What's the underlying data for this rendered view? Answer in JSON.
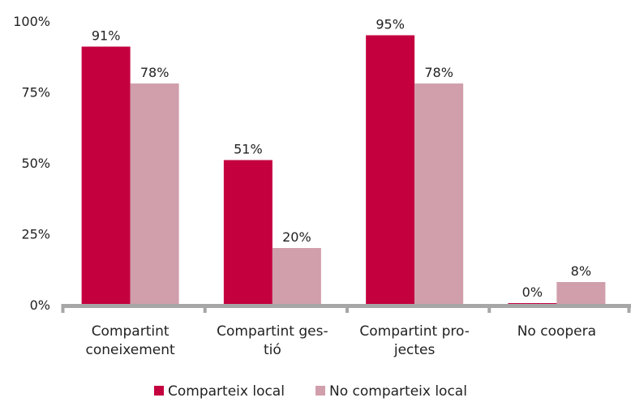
{
  "chart_data": {
    "type": "bar",
    "title": "",
    "xlabel": "",
    "ylabel": "",
    "ylim": [
      0,
      100
    ],
    "y_ticks": [
      "0%",
      "25%",
      "50%",
      "75%",
      "100%"
    ],
    "y_tick_values": [
      0,
      25,
      50,
      75,
      100
    ],
    "grid": false,
    "legend_position": "bottom",
    "categories": [
      [
        "Compartint",
        "coneixement"
      ],
      [
        "Compartint ges-",
        "tió"
      ],
      [
        "Compartint pro-",
        "jectes"
      ],
      [
        "No coopera"
      ]
    ],
    "series": [
      {
        "name": "Comparteix local",
        "color": "#c4003f",
        "values": [
          91,
          51,
          95,
          0
        ],
        "labels": [
          "91%",
          "51%",
          "95%",
          "0%"
        ]
      },
      {
        "name": "No comparteix local",
        "color": "#d09fab",
        "values": [
          78,
          20,
          78,
          8
        ],
        "labels": [
          "78%",
          "20%",
          "78%",
          "8%"
        ]
      }
    ],
    "axis_color": "#a6a6a6"
  }
}
